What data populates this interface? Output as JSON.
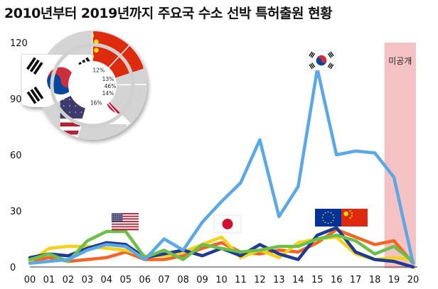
{
  "chart_data": {
    "type": "line",
    "title": "2010년부터 2019년까지 주요국 수소 선박 특허출원 현황",
    "xlabel": "",
    "ylabel": "",
    "x": [
      "00",
      "01",
      "02",
      "03",
      "04",
      "05",
      "06",
      "07",
      "08",
      "09",
      "10",
      "11",
      "12",
      "13",
      "14",
      "15",
      "16",
      "17",
      "18",
      "19",
      "20"
    ],
    "ylim": [
      0,
      120
    ],
    "yticks": [
      0,
      30,
      60,
      90,
      120
    ],
    "grid": false,
    "unpublished_label": "미공개",
    "unpublished_range": [
      "18.5",
      "20"
    ],
    "series": [
      {
        "key": "korea",
        "color": "#5aa8e8",
        "flag": "korea-flag",
        "values": [
          2,
          3,
          4,
          9,
          12,
          11,
          4,
          15,
          9,
          24,
          35,
          45,
          68,
          27,
          43,
          106,
          60,
          62,
          61,
          48,
          2
        ]
      },
      {
        "key": "europe",
        "color": "#1f3a93",
        "flag": "eu-flag",
        "values": [
          5,
          7,
          6,
          10,
          13,
          12,
          5,
          7,
          9,
          6,
          10,
          6,
          12,
          7,
          4,
          17,
          21,
          8,
          4,
          3,
          0
        ]
      },
      {
        "key": "japan",
        "color": "#f5d11c",
        "flag": "japan-flag",
        "values": [
          3,
          10,
          11,
          11,
          10,
          9,
          6,
          6,
          8,
          12,
          16,
          5,
          9,
          5,
          13,
          15,
          16,
          7,
          4,
          5,
          4
        ]
      },
      {
        "key": "china",
        "color": "#f26522",
        "flag": "china-flag",
        "values": [
          3,
          5,
          3,
          4,
          5,
          8,
          4,
          4,
          6,
          10,
          13,
          8,
          7,
          9,
          8,
          13,
          20,
          16,
          12,
          14,
          2
        ]
      },
      {
        "key": "usa",
        "color": "#6cc04a",
        "flag": "usa-flag",
        "values": [
          4,
          7,
          3,
          14,
          19,
          19,
          5,
          9,
          4,
          12,
          10,
          8,
          9,
          11,
          11,
          15,
          17,
          14,
          7,
          11,
          3
        ]
      }
    ],
    "inset_pie": {
      "type": "pie",
      "slices": [
        {
          "key": "korea",
          "label": "46%",
          "value": 46
        },
        {
          "key": "usa",
          "label": "16%",
          "value": 16
        },
        {
          "key": "japan",
          "label": "14%",
          "value": 14
        },
        {
          "key": "europe",
          "label": "13%",
          "value": 13
        },
        {
          "key": "china",
          "label": "12%",
          "value": 12
        }
      ]
    }
  }
}
